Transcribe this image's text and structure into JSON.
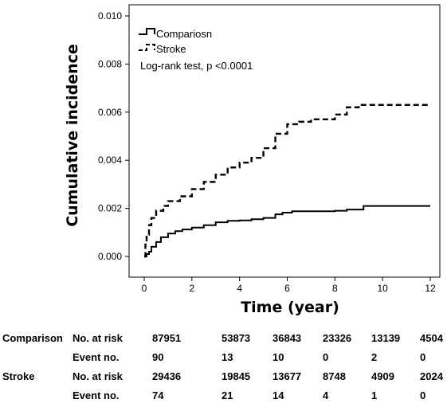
{
  "chart_data": {
    "type": "line",
    "title": "",
    "xlabel": "Time (year)",
    "ylabel": "Cumulative incidence",
    "xlim": [
      0,
      12
    ],
    "ylim": [
      0,
      0.01
    ],
    "x_ticks": [
      "0",
      "2",
      "4",
      "6",
      "8",
      "10",
      "12"
    ],
    "y_ticks": [
      "0.000",
      "0.002",
      "0.004",
      "0.006",
      "0.008",
      "0.010"
    ],
    "grid": false,
    "legend_position": "top-left",
    "annotation": "Log-rank test, p <0.0001",
    "series": [
      {
        "name": "Compariosn",
        "style": "solid",
        "x": [
          0,
          0.1,
          0.2,
          0.3,
          0.5,
          0.7,
          1.0,
          1.3,
          1.6,
          2.0,
          2.5,
          3.0,
          3.5,
          4.0,
          4.5,
          5.0,
          5.5,
          5.8,
          6.2,
          7.0,
          8.0,
          8.5,
          9.2,
          10.0,
          12.0
        ],
        "y": [
          0,
          0.0001,
          0.0002,
          0.0004,
          0.0006,
          0.0008,
          0.00095,
          0.00105,
          0.00112,
          0.0012,
          0.0013,
          0.00142,
          0.00148,
          0.0015,
          0.00155,
          0.0016,
          0.00175,
          0.00182,
          0.00188,
          0.00188,
          0.0019,
          0.00195,
          0.0021,
          0.0021,
          0.0021
        ]
      },
      {
        "name": "Stroke",
        "style": "dashed",
        "x": [
          0,
          0.05,
          0.1,
          0.2,
          0.3,
          0.5,
          0.8,
          1.0,
          1.5,
          2.0,
          2.5,
          3.0,
          3.5,
          4.0,
          4.5,
          5.0,
          5.5,
          6.0,
          6.5,
          7.0,
          7.5,
          8.0,
          8.5,
          9.0,
          12.0
        ],
        "y": [
          0,
          0.0005,
          0.0009,
          0.0013,
          0.0016,
          0.0019,
          0.0021,
          0.0023,
          0.0025,
          0.0028,
          0.0031,
          0.0034,
          0.0037,
          0.0039,
          0.0041,
          0.0045,
          0.0051,
          0.0055,
          0.0056,
          0.0057,
          0.0057,
          0.0059,
          0.0062,
          0.0063,
          0.0063
        ]
      }
    ]
  },
  "risk_table": {
    "groups": [
      {
        "name": "Comparison",
        "rows": [
          {
            "label": "No. at risk",
            "values": [
              "87951",
              "53873",
              "36843",
              "23326",
              "13139",
              "4504"
            ]
          },
          {
            "label": "Event no.",
            "values": [
              "90",
              "13",
              "10",
              "0",
              "2",
              "0"
            ]
          }
        ]
      },
      {
        "name": "Stroke",
        "rows": [
          {
            "label": "No. at risk",
            "values": [
              "29436",
              "19845",
              "13677",
              "8748",
              "4909",
              "2024"
            ]
          },
          {
            "label": "Event no.",
            "values": [
              "74",
              "21",
              "14",
              "4",
              "1",
              "0"
            ]
          }
        ]
      }
    ]
  }
}
